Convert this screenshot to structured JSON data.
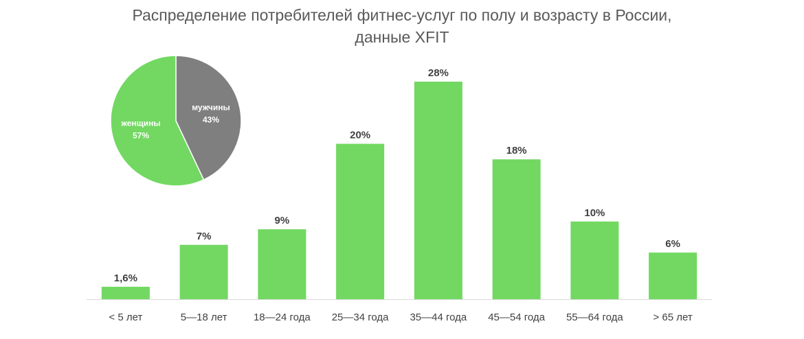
{
  "title_line1": "Распределение потребителей фитнес-услуг по полу и возрасту в России,",
  "title_line2": "данные XFIT",
  "colors": {
    "bar": "#72d862",
    "pie_women": "#72d862",
    "pie_men": "#7f7f7f",
    "axis": "#d9d9d9",
    "text": "#404040",
    "title": "#595959"
  },
  "chart_data": [
    {
      "type": "bar",
      "categories": [
        "< 5 лет",
        "5—18 лет",
        "18—24 года",
        "25—34 года",
        "35—44 года",
        "45—54 года",
        "55—64 года",
        "> 65 лет"
      ],
      "values": [
        1.6,
        7,
        9,
        20,
        28,
        18,
        10,
        6
      ],
      "data_labels": [
        "1,6%",
        "7%",
        "9%",
        "20%",
        "28%",
        "18%",
        "10%",
        "6%"
      ],
      "ylim": [
        0,
        28
      ],
      "grid": false
    },
    {
      "type": "pie",
      "slices": [
        {
          "label": "мужчины",
          "value": 43,
          "display": "43%"
        },
        {
          "label": "женщины",
          "value": 57,
          "display": "57%"
        }
      ]
    }
  ]
}
